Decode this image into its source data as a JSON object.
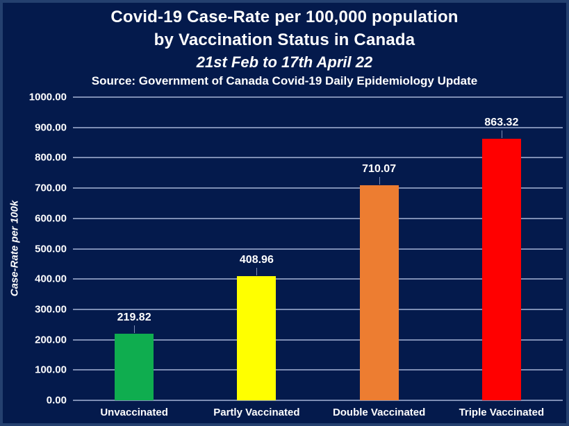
{
  "header": {
    "title_line1": "Covid-19 Case-Rate per 100,000 population",
    "title_line2": "by Vaccination Status in Canada",
    "subtitle": "21st Feb to 17th April 22",
    "source": "Source: Government of Canada Covid-19 Daily Epidemiology Update"
  },
  "colors": {
    "background": "#041A4C",
    "frame_border": "#24406F",
    "gridline": "#7E8EB4",
    "text": "#FFFFFF"
  },
  "chart_data": {
    "type": "bar",
    "title": "Covid-19 Case-Rate per 100,000 population by Vaccination Status in Canada",
    "subtitle": "21st Feb to 17th April 22",
    "source": "Source: Government of Canada Covid-19 Daily Epidemiology Update",
    "categories": [
      "Unvaccinated",
      "Partly Vaccinated",
      "Double Vaccinated",
      "Triple Vaccinated"
    ],
    "values": [
      219.82,
      408.96,
      710.07,
      863.32
    ],
    "value_labels": [
      "219.82",
      "408.96",
      "710.07",
      "863.32"
    ],
    "bar_colors": [
      "#0FAD4F",
      "#FFFF00",
      "#ED7D31",
      "#FF0000"
    ],
    "xlabel": "",
    "ylabel": "Case-Rate per 100k",
    "ylim": [
      0,
      1000
    ],
    "ytick_step": 100,
    "ytick_labels": [
      "0.00",
      "100.00",
      "200.00",
      "300.00",
      "400.00",
      "500.00",
      "600.00",
      "700.00",
      "800.00",
      "900.00",
      "1000.00"
    ],
    "grid": true,
    "legend": false
  }
}
